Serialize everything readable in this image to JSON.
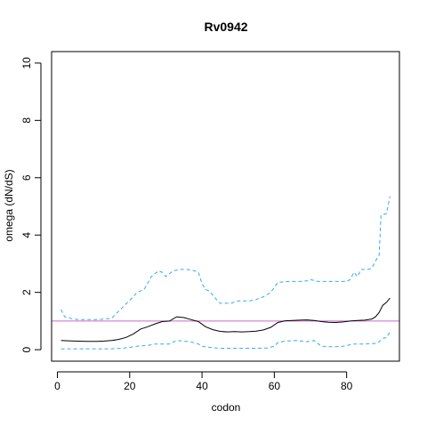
{
  "chart_data": {
    "type": "line",
    "title": "Rv0942",
    "xlabel": "codon",
    "ylabel": "omega (dN/dS)",
    "xlim": [
      -1.6,
      94.6
    ],
    "ylim": [
      -0.4,
      10.4
    ],
    "xticks": [
      0,
      20,
      40,
      60,
      80
    ],
    "yticks": [
      0,
      2,
      4,
      6,
      8,
      10
    ],
    "reference_line": {
      "y": 1,
      "color": "#cc66cc"
    },
    "colors": {
      "estimate": "#000000",
      "bounds": "#33aaee"
    },
    "series": [
      {
        "style": "solid",
        "points": [
          [
            1,
            0.32
          ],
          [
            3,
            0.31
          ],
          [
            5,
            0.3
          ],
          [
            8,
            0.29
          ],
          [
            11,
            0.29
          ],
          [
            13,
            0.3
          ],
          [
            15,
            0.32
          ],
          [
            17,
            0.36
          ],
          [
            19,
            0.43
          ],
          [
            21,
            0.55
          ],
          [
            23,
            0.72
          ],
          [
            25,
            0.8
          ],
          [
            27,
            0.9
          ],
          [
            29,
            0.98
          ],
          [
            31,
            1.0
          ],
          [
            33,
            1.15
          ],
          [
            35,
            1.12
          ],
          [
            37,
            1.05
          ],
          [
            39,
            0.98
          ],
          [
            41,
            0.8
          ],
          [
            43,
            0.7
          ],
          [
            45,
            0.64
          ],
          [
            47,
            0.62
          ],
          [
            49,
            0.63
          ],
          [
            51,
            0.62
          ],
          [
            53,
            0.63
          ],
          [
            55,
            0.65
          ],
          [
            57,
            0.69
          ],
          [
            59,
            0.78
          ],
          [
            61,
            0.95
          ],
          [
            63,
            1.01
          ],
          [
            65,
            1.02
          ],
          [
            67,
            1.03
          ],
          [
            69,
            1.04
          ],
          [
            71,
            1.02
          ],
          [
            73,
            0.98
          ],
          [
            75,
            0.96
          ],
          [
            77,
            0.95
          ],
          [
            79,
            0.97
          ],
          [
            81,
            1.0
          ],
          [
            83,
            1.02
          ],
          [
            85,
            1.03
          ],
          [
            87,
            1.07
          ],
          [
            88,
            1.15
          ],
          [
            89,
            1.3
          ],
          [
            90,
            1.55
          ],
          [
            91,
            1.65
          ],
          [
            92,
            1.8
          ]
        ]
      },
      {
        "style": "dashed",
        "points": [
          [
            1,
            1.4
          ],
          [
            2,
            1.15
          ],
          [
            4,
            1.08
          ],
          [
            6,
            1.05
          ],
          [
            9,
            1.05
          ],
          [
            12,
            1.06
          ],
          [
            15,
            1.1
          ],
          [
            17,
            1.35
          ],
          [
            19,
            1.6
          ],
          [
            21,
            1.85
          ],
          [
            22,
            2.0
          ],
          [
            24,
            2.1
          ],
          [
            26,
            2.55
          ],
          [
            28,
            2.75
          ],
          [
            29,
            2.7
          ],
          [
            30,
            2.55
          ],
          [
            32,
            2.75
          ],
          [
            34,
            2.8
          ],
          [
            36,
            2.8
          ],
          [
            38,
            2.75
          ],
          [
            39,
            2.7
          ],
          [
            40,
            2.3
          ],
          [
            41,
            2.1
          ],
          [
            42,
            2.05
          ],
          [
            44,
            1.75
          ],
          [
            45,
            1.62
          ],
          [
            48,
            1.62
          ],
          [
            50,
            1.7
          ],
          [
            53,
            1.7
          ],
          [
            55,
            1.75
          ],
          [
            57,
            1.85
          ],
          [
            59,
            2.0
          ],
          [
            61,
            2.35
          ],
          [
            64,
            2.38
          ],
          [
            67,
            2.38
          ],
          [
            69,
            2.4
          ],
          [
            70,
            2.45
          ],
          [
            72,
            2.38
          ],
          [
            74,
            2.38
          ],
          [
            77,
            2.38
          ],
          [
            80,
            2.38
          ],
          [
            81,
            2.45
          ],
          [
            82,
            2.7
          ],
          [
            83,
            2.55
          ],
          [
            84,
            2.8
          ],
          [
            86,
            2.8
          ],
          [
            87,
            2.85
          ],
          [
            88,
            3.1
          ],
          [
            89,
            3.3
          ],
          [
            89.5,
            4.7
          ],
          [
            91,
            4.75
          ],
          [
            92,
            5.35
          ]
        ]
      },
      {
        "style": "dashed",
        "points": [
          [
            1,
            0.03
          ],
          [
            5,
            0.03
          ],
          [
            10,
            0.03
          ],
          [
            15,
            0.03
          ],
          [
            18,
            0.05
          ],
          [
            20,
            0.08
          ],
          [
            22,
            0.12
          ],
          [
            25,
            0.15
          ],
          [
            27,
            0.2
          ],
          [
            29,
            0.2
          ],
          [
            31,
            0.2
          ],
          [
            33,
            0.32
          ],
          [
            35,
            0.3
          ],
          [
            37,
            0.27
          ],
          [
            39,
            0.2
          ],
          [
            40,
            0.12
          ],
          [
            42,
            0.08
          ],
          [
            45,
            0.05
          ],
          [
            50,
            0.05
          ],
          [
            55,
            0.05
          ],
          [
            58,
            0.06
          ],
          [
            60,
            0.12
          ],
          [
            61,
            0.25
          ],
          [
            63,
            0.3
          ],
          [
            66,
            0.32
          ],
          [
            69,
            0.28
          ],
          [
            71,
            0.32
          ],
          [
            73,
            0.12
          ],
          [
            76,
            0.1
          ],
          [
            79,
            0.12
          ],
          [
            82,
            0.2
          ],
          [
            85,
            0.2
          ],
          [
            88,
            0.22
          ],
          [
            89,
            0.28
          ],
          [
            90,
            0.4
          ],
          [
            91,
            0.42
          ],
          [
            92,
            0.62
          ]
        ]
      }
    ]
  }
}
